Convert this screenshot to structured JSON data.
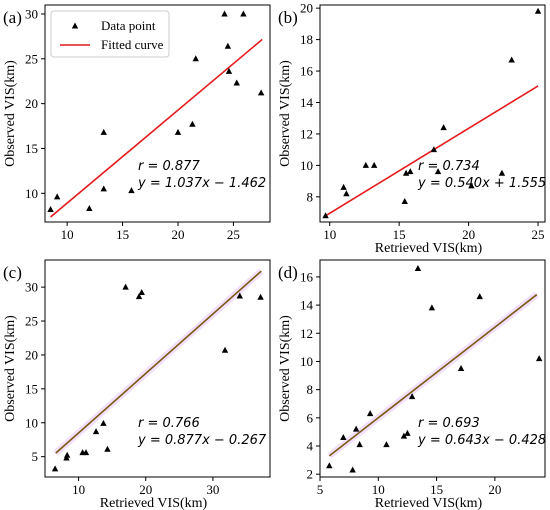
{
  "figure": {
    "colors": {
      "axis": "#000000",
      "marker": "#000000",
      "fit_red": "#e41a1c",
      "fit_dual": "#7a5a10",
      "fit_dual_shade": "#e8c7ff"
    }
  },
  "chart_data": [
    {
      "type": "scatter",
      "panel": "(a)",
      "xlabel": "",
      "ylabel": "Observed VIS(km)",
      "xlim": [
        8,
        28.3
      ],
      "ylim": [
        6.8,
        31
      ],
      "xticks": [
        "10",
        "15",
        "20",
        "25"
      ],
      "xtick_values": [
        10,
        15,
        20,
        25
      ],
      "yticks": [
        "10",
        "15",
        "20",
        "25",
        "30"
      ],
      "ytick_values": [
        10,
        15,
        20,
        25,
        30
      ],
      "legend": {
        "position": "top-left",
        "entries": [
          "Data point",
          "Fitted curve"
        ]
      },
      "annotation": {
        "r": "r = 0.877",
        "eq": "y = 1.037x − 1.462"
      },
      "fit": {
        "slope": 1.037,
        "intercept": -1.462,
        "x_range": [
          8.5,
          27.6
        ]
      },
      "series": [
        {
          "name": "Data point",
          "points": [
            [
              8.5,
              8.2
            ],
            [
              9.1,
              9.6
            ],
            [
              12,
              8.3
            ],
            [
              13.3,
              16.8
            ],
            [
              13.3,
              10.5
            ],
            [
              15.8,
              10.3
            ],
            [
              20,
              16.8
            ],
            [
              21.3,
              17.7
            ],
            [
              21.6,
              25
            ],
            [
              24.2,
              30
            ],
            [
              24.5,
              26.4
            ],
            [
              24.6,
              23.6
            ],
            [
              25.3,
              22.3
            ],
            [
              25.9,
              30
            ],
            [
              27.5,
              21.2
            ]
          ]
        }
      ]
    },
    {
      "type": "scatter",
      "panel": "(b)",
      "xlabel": "Retrieved VIS(km)",
      "ylabel": "Observed VIS(km)",
      "xlim": [
        9.3,
        25.5
      ],
      "ylim": [
        6.4,
        20.2
      ],
      "xticks": [
        "10",
        "15",
        "20",
        "25"
      ],
      "xtick_values": [
        10,
        15,
        20,
        25
      ],
      "yticks": [
        "8",
        "10",
        "12",
        "14",
        "16",
        "18",
        "20"
      ],
      "ytick_values": [
        8,
        10,
        12,
        14,
        16,
        18,
        20
      ],
      "annotation": {
        "r": "r = 0.734",
        "eq": "y = 0.540x + 1.555"
      },
      "fit": {
        "slope": 0.54,
        "intercept": 1.555,
        "x_range": [
          9.7,
          25
        ]
      },
      "series": [
        {
          "name": "Data point",
          "points": [
            [
              9.7,
              6.8
            ],
            [
              11,
              8.6
            ],
            [
              11.2,
              8.2
            ],
            [
              12.6,
              10
            ],
            [
              13.2,
              10
            ],
            [
              15.4,
              7.7
            ],
            [
              15.5,
              9.5
            ],
            [
              15.8,
              9.6
            ],
            [
              17.5,
              11
            ],
            [
              17.8,
              9.6
            ],
            [
              18.2,
              12.4
            ],
            [
              20.2,
              8.7
            ],
            [
              22.4,
              9.5
            ],
            [
              23.1,
              16.7
            ],
            [
              25,
              19.8
            ]
          ]
        }
      ]
    },
    {
      "type": "scatter",
      "panel": "(c)",
      "xlabel": "Retrieved VIS(km)",
      "ylabel": "Observed VIS(km)",
      "xlim": [
        5,
        38.5
      ],
      "ylim": [
        2,
        34
      ],
      "xticks": [
        "10",
        "20",
        "30"
      ],
      "xtick_values": [
        10,
        20,
        30
      ],
      "yticks": [
        "5",
        "10",
        "15",
        "20",
        "25",
        "30"
      ],
      "ytick_values": [
        5,
        10,
        15,
        20,
        25,
        30
      ],
      "annotation": {
        "r": "r = 0.766",
        "eq": "y = 0.877x − 0.267"
      },
      "fit": {
        "slope": 0.877,
        "intercept": -0.267,
        "x_range": [
          6.6,
          37.2
        ]
      },
      "series": [
        {
          "name": "Data point",
          "points": [
            [
              6.5,
              3.2
            ],
            [
              8.2,
              4.8
            ],
            [
              8.3,
              5.2
            ],
            [
              10.6,
              5.6
            ],
            [
              11.1,
              5.6
            ],
            [
              12.6,
              8.7
            ],
            [
              13.7,
              9.9
            ],
            [
              14.3,
              6.1
            ],
            [
              17,
              30
            ],
            [
              19,
              28.6
            ],
            [
              19.4,
              29.2
            ],
            [
              31.8,
              20.7
            ],
            [
              34,
              28.7
            ],
            [
              37.1,
              28.5
            ]
          ]
        }
      ]
    },
    {
      "type": "scatter",
      "panel": "(d)",
      "xlabel": "Retrieved VIS(km)",
      "ylabel": "Observed VIS(km)",
      "xlim": [
        5,
        24.3
      ],
      "ylim": [
        1.8,
        17.2
      ],
      "xticks": [
        "5",
        "10",
        "15",
        "20"
      ],
      "xtick_values": [
        5,
        10,
        15,
        20
      ],
      "yticks": [
        "2",
        "4",
        "6",
        "8",
        "10",
        "12",
        "14",
        "16"
      ],
      "ytick_values": [
        2,
        4,
        6,
        8,
        10,
        12,
        14,
        16
      ],
      "annotation": {
        "r": "r = 0.693",
        "eq": "y = 0.643x − 0.428"
      },
      "fit": {
        "slope": 0.643,
        "intercept": -0.428,
        "x_range": [
          5.8,
          23.6
        ]
      },
      "series": [
        {
          "name": "Data point",
          "points": [
            [
              5.8,
              2.6
            ],
            [
              7,
              4.6
            ],
            [
              7.8,
              2.3
            ],
            [
              8.1,
              5.2
            ],
            [
              8.4,
              4.1
            ],
            [
              9.3,
              6.3
            ],
            [
              10.7,
              4.1
            ],
            [
              12.2,
              4.7
            ],
            [
              12.5,
              4.9
            ],
            [
              12.9,
              7.5
            ],
            [
              13.4,
              16.6
            ],
            [
              14.6,
              13.8
            ],
            [
              17.1,
              9.5
            ],
            [
              18.7,
              14.6
            ],
            [
              23.8,
              10.2
            ]
          ]
        }
      ]
    }
  ]
}
